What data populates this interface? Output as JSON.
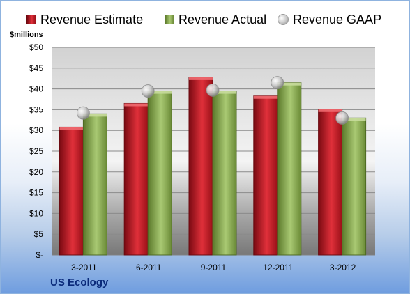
{
  "chart_data": {
    "type": "bar",
    "categories": [
      "3-2011",
      "6-2011",
      "9-2011",
      "12-2011",
      "3-2012"
    ],
    "series": [
      {
        "name": "Revenue Estimate",
        "values": [
          30.8,
          36.5,
          42.8,
          38.3,
          35.1
        ],
        "color": "#d42a33"
      },
      {
        "name": "Revenue Actual",
        "values": [
          34.0,
          39.5,
          39.5,
          41.5,
          33.0
        ],
        "color": "#92b35a"
      },
      {
        "name": "Revenue GAAP",
        "values": [
          34.2,
          39.5,
          39.7,
          41.5,
          33.0
        ],
        "color": "#c8c8c8",
        "marker": "sphere"
      }
    ],
    "ylim": [
      0,
      50
    ],
    "y_ticks": [
      "$-",
      "$5",
      "$10",
      "$15",
      "$20",
      "$25",
      "$30",
      "$35",
      "$40",
      "$45",
      "$50"
    ],
    "ylabel": "$millions",
    "grid": true,
    "legend_position": "top"
  },
  "footer": {
    "company": "US Ecology"
  }
}
